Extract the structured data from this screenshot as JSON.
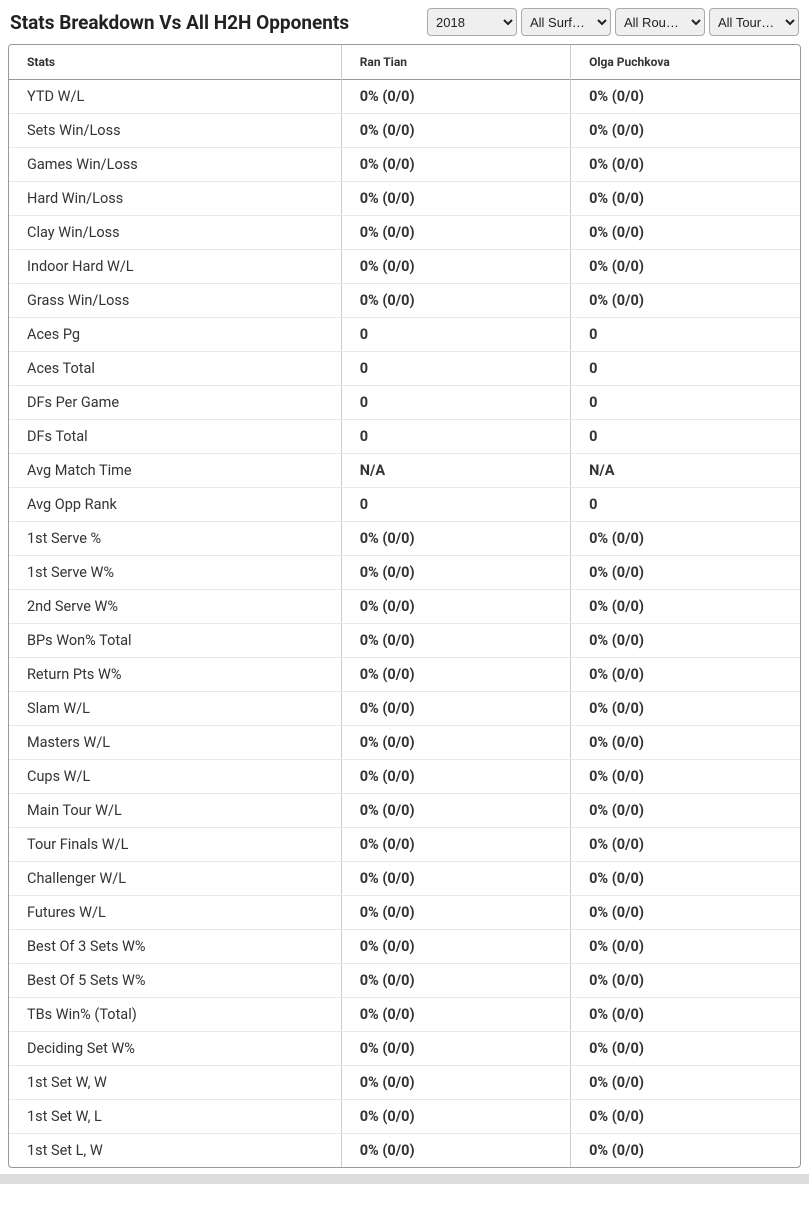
{
  "header": {
    "title": "Stats Breakdown Vs All H2H Opponents"
  },
  "filters": {
    "year": {
      "selected": "2018",
      "options": [
        "2018"
      ]
    },
    "surface": {
      "selected": "All Surf…",
      "options": [
        "All Surf…"
      ]
    },
    "round": {
      "selected": "All Rou…",
      "options": [
        "All Rou…"
      ]
    },
    "tour": {
      "selected": "All Tour…",
      "options": [
        "All Tour…"
      ]
    }
  },
  "table": {
    "columns": [
      "Stats",
      "Ran Tian",
      "Olga Puchkova"
    ],
    "rows": [
      [
        "YTD W/L",
        "0% (0/0)",
        "0% (0/0)"
      ],
      [
        "Sets Win/Loss",
        "0% (0/0)",
        "0% (0/0)"
      ],
      [
        "Games Win/Loss",
        "0% (0/0)",
        "0% (0/0)"
      ],
      [
        "Hard Win/Loss",
        "0% (0/0)",
        "0% (0/0)"
      ],
      [
        "Clay Win/Loss",
        "0% (0/0)",
        "0% (0/0)"
      ],
      [
        "Indoor Hard W/L",
        "0% (0/0)",
        "0% (0/0)"
      ],
      [
        "Grass Win/Loss",
        "0% (0/0)",
        "0% (0/0)"
      ],
      [
        "Aces Pg",
        "0",
        "0"
      ],
      [
        "Aces Total",
        "0",
        "0"
      ],
      [
        "DFs Per Game",
        "0",
        "0"
      ],
      [
        "DFs Total",
        "0",
        "0"
      ],
      [
        "Avg Match Time",
        "N/A",
        "N/A"
      ],
      [
        "Avg Opp Rank",
        "0",
        "0"
      ],
      [
        "1st Serve %",
        "0% (0/0)",
        "0% (0/0)"
      ],
      [
        "1st Serve W%",
        "0% (0/0)",
        "0% (0/0)"
      ],
      [
        "2nd Serve W%",
        "0% (0/0)",
        "0% (0/0)"
      ],
      [
        "BPs Won% Total",
        "0% (0/0)",
        "0% (0/0)"
      ],
      [
        "Return Pts W%",
        "0% (0/0)",
        "0% (0/0)"
      ],
      [
        "Slam W/L",
        "0% (0/0)",
        "0% (0/0)"
      ],
      [
        "Masters W/L",
        "0% (0/0)",
        "0% (0/0)"
      ],
      [
        "Cups W/L",
        "0% (0/0)",
        "0% (0/0)"
      ],
      [
        "Main Tour W/L",
        "0% (0/0)",
        "0% (0/0)"
      ],
      [
        "Tour Finals W/L",
        "0% (0/0)",
        "0% (0/0)"
      ],
      [
        "Challenger W/L",
        "0% (0/0)",
        "0% (0/0)"
      ],
      [
        "Futures W/L",
        "0% (0/0)",
        "0% (0/0)"
      ],
      [
        "Best Of 3 Sets W%",
        "0% (0/0)",
        "0% (0/0)"
      ],
      [
        "Best Of 5 Sets W%",
        "0% (0/0)",
        "0% (0/0)"
      ],
      [
        "TBs Win% (Total)",
        "0% (0/0)",
        "0% (0/0)"
      ],
      [
        "Deciding Set W%",
        "0% (0/0)",
        "0% (0/0)"
      ],
      [
        "1st Set W, W",
        "0% (0/0)",
        "0% (0/0)"
      ],
      [
        "1st Set W, L",
        "0% (0/0)",
        "0% (0/0)"
      ],
      [
        "1st Set L, W",
        "0% (0/0)",
        "0% (0/0)"
      ]
    ]
  },
  "styling": {
    "header_title_fontsize": 19,
    "header_title_color": "#222222",
    "table_border_color": "#999999",
    "row_border_color": "#e8e8e8",
    "col_border_color": "#cccccc",
    "header_cell_fontsize": 12,
    "body_cell_fontsize": 14.5,
    "text_color": "#333333",
    "select_bg": "#efefef",
    "select_border": "#aaaaaa",
    "footer_bar_bg": "#dddddd",
    "col_widths_pct": [
      42,
      29,
      29
    ]
  }
}
